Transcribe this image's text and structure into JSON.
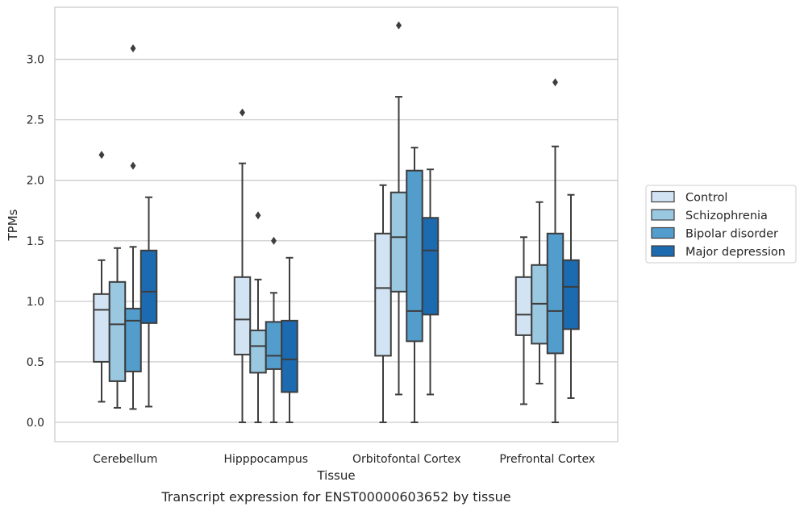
{
  "chart_data": {
    "type": "box",
    "caption": "Transcript expression for ENST00000603652 by tissue",
    "xlabel": "Tissue",
    "ylabel": "TPMs",
    "ylim": [
      -0.16,
      3.43
    ],
    "yticks": [
      "0.0",
      "0.5",
      "1.0",
      "1.5",
      "2.0",
      "2.5",
      "3.0"
    ],
    "grid": true,
    "legend_position": "right",
    "categories": [
      "Cerebellum",
      "Hipppocampus",
      "Orbitofontal Cortex",
      "Prefrontal Cortex"
    ],
    "series": [
      {
        "name": "Control",
        "color": "#d2e3f3",
        "boxes": [
          {
            "whislo": 0.17,
            "q1": 0.5,
            "med": 0.93,
            "q3": 1.06,
            "whishi": 1.34,
            "fliers": [
              2.21
            ]
          },
          {
            "whislo": 0.0,
            "q1": 0.56,
            "med": 0.85,
            "q3": 1.2,
            "whishi": 2.14,
            "fliers": [
              2.56
            ]
          },
          {
            "whislo": 0.0,
            "q1": 0.55,
            "med": 1.11,
            "q3": 1.56,
            "whishi": 1.96,
            "fliers": []
          },
          {
            "whislo": 0.15,
            "q1": 0.72,
            "med": 0.89,
            "q3": 1.2,
            "whishi": 1.53,
            "fliers": []
          }
        ]
      },
      {
        "name": "Schizophrenia",
        "color": "#9ac8e0",
        "boxes": [
          {
            "whislo": 0.12,
            "q1": 0.34,
            "med": 0.81,
            "q3": 1.16,
            "whishi": 1.44,
            "fliers": []
          },
          {
            "whislo": 0.0,
            "q1": 0.41,
            "med": 0.63,
            "q3": 0.76,
            "whishi": 1.18,
            "fliers": [
              1.71
            ]
          },
          {
            "whislo": 0.23,
            "q1": 1.08,
            "med": 1.53,
            "q3": 1.9,
            "whishi": 2.69,
            "fliers": [
              3.28
            ]
          },
          {
            "whislo": 0.32,
            "q1": 0.65,
            "med": 0.98,
            "q3": 1.3,
            "whishi": 1.82,
            "fliers": []
          }
        ]
      },
      {
        "name": "Bipolar disorder",
        "color": "#529dcc",
        "boxes": [
          {
            "whislo": 0.11,
            "q1": 0.42,
            "med": 0.84,
            "q3": 0.94,
            "whishi": 1.45,
            "fliers": [
              2.12,
              3.09
            ]
          },
          {
            "whislo": 0.0,
            "q1": 0.44,
            "med": 0.55,
            "q3": 0.83,
            "whishi": 1.07,
            "fliers": [
              1.5
            ]
          },
          {
            "whislo": 0.0,
            "q1": 0.67,
            "med": 0.92,
            "q3": 2.08,
            "whishi": 2.27,
            "fliers": []
          },
          {
            "whislo": 0.0,
            "q1": 0.57,
            "med": 0.92,
            "q3": 1.56,
            "whishi": 2.28,
            "fliers": [
              2.81
            ]
          }
        ]
      },
      {
        "name": "Major depression",
        "color": "#1c6aaf",
        "boxes": [
          {
            "whislo": 0.13,
            "q1": 0.82,
            "med": 1.08,
            "q3": 1.42,
            "whishi": 1.86,
            "fliers": []
          },
          {
            "whislo": 0.0,
            "q1": 0.25,
            "med": 0.52,
            "q3": 0.84,
            "whishi": 1.36,
            "fliers": []
          },
          {
            "whislo": 0.23,
            "q1": 0.89,
            "med": 1.42,
            "q3": 1.69,
            "whishi": 2.09,
            "fliers": []
          },
          {
            "whislo": 0.2,
            "q1": 0.77,
            "med": 1.12,
            "q3": 1.34,
            "whishi": 1.88,
            "fliers": []
          }
        ]
      }
    ]
  }
}
